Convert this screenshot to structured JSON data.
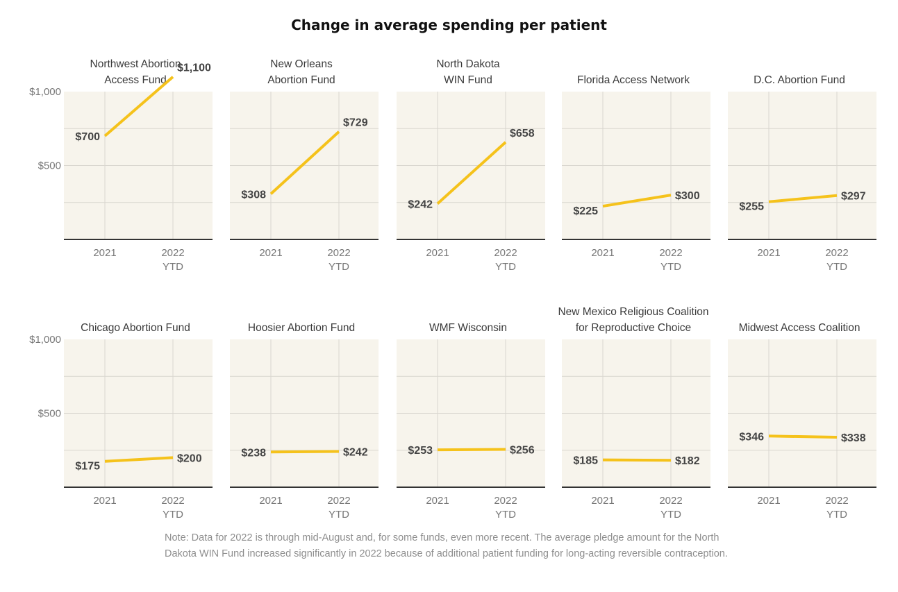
{
  "title": "Change in average spending per patient",
  "note": "Note: Data for 2022 is through mid-August and, for some funds, even more recent. The average pledge amount for the North Dakota WIN Fund increased significantly in 2022 because of additional patient funding for long-acting reversible contraception.",
  "colors": {
    "line": "#f5c21b",
    "panel": "#f7f4ec",
    "grid": "#d9d6cf",
    "axis": "#333333"
  },
  "chart_data": {
    "type": "line",
    "title": "Change in average spending per patient",
    "x_categories": [
      "2021",
      "2022 YTD"
    ],
    "x_tick_labels": [
      [
        "2021"
      ],
      [
        "2022",
        "YTD"
      ]
    ],
    "ylim": [
      0,
      1000
    ],
    "y_ticks": [
      {
        "value": 1000,
        "label": "$1,000"
      },
      {
        "value": 500,
        "label": "$500"
      }
    ],
    "series": [
      {
        "name": "Northwest Abortion Access Fund",
        "title_lines": [
          "Northwest Abortion",
          "Access Fund"
        ],
        "values": [
          700,
          1100
        ],
        "labels": [
          "$700",
          "$1,100"
        ]
      },
      {
        "name": "New Orleans Abortion Fund",
        "title_lines": [
          "New Orleans",
          "Abortion Fund"
        ],
        "values": [
          308,
          729
        ],
        "labels": [
          "$308",
          "$729"
        ]
      },
      {
        "name": "North Dakota WIN Fund",
        "title_lines": [
          "North Dakota",
          "WIN Fund"
        ],
        "values": [
          242,
          658
        ],
        "labels": [
          "$242",
          "$658"
        ]
      },
      {
        "name": "Florida Access Network",
        "title_lines": [
          "Florida Access Network"
        ],
        "values": [
          225,
          300
        ],
        "labels": [
          "$225",
          "$300"
        ]
      },
      {
        "name": "D.C. Abortion Fund",
        "title_lines": [
          "D.C. Abortion Fund"
        ],
        "values": [
          255,
          297
        ],
        "labels": [
          "$255",
          "$297"
        ]
      },
      {
        "name": "Chicago Abortion Fund",
        "title_lines": [
          "Chicago Abortion Fund"
        ],
        "values": [
          175,
          200
        ],
        "labels": [
          "$175",
          "$200"
        ]
      },
      {
        "name": "Hoosier Abortion Fund",
        "title_lines": [
          "Hoosier Abortion Fund"
        ],
        "values": [
          238,
          242
        ],
        "labels": [
          "$238",
          "$242"
        ]
      },
      {
        "name": "WMF Wisconsin",
        "title_lines": [
          "WMF Wisconsin"
        ],
        "values": [
          253,
          256
        ],
        "labels": [
          "$253",
          "$256"
        ]
      },
      {
        "name": "New Mexico Religious Coalition for Reproductive Choice",
        "title_lines": [
          "New Mexico Religious Coalition",
          "for Reproductive Choice"
        ],
        "values": [
          185,
          182
        ],
        "labels": [
          "$185",
          "$182"
        ]
      },
      {
        "name": "Midwest Access Coalition",
        "title_lines": [
          "Midwest Access Coalition"
        ],
        "values": [
          346,
          338
        ],
        "labels": [
          "$346",
          "$338"
        ]
      }
    ]
  }
}
